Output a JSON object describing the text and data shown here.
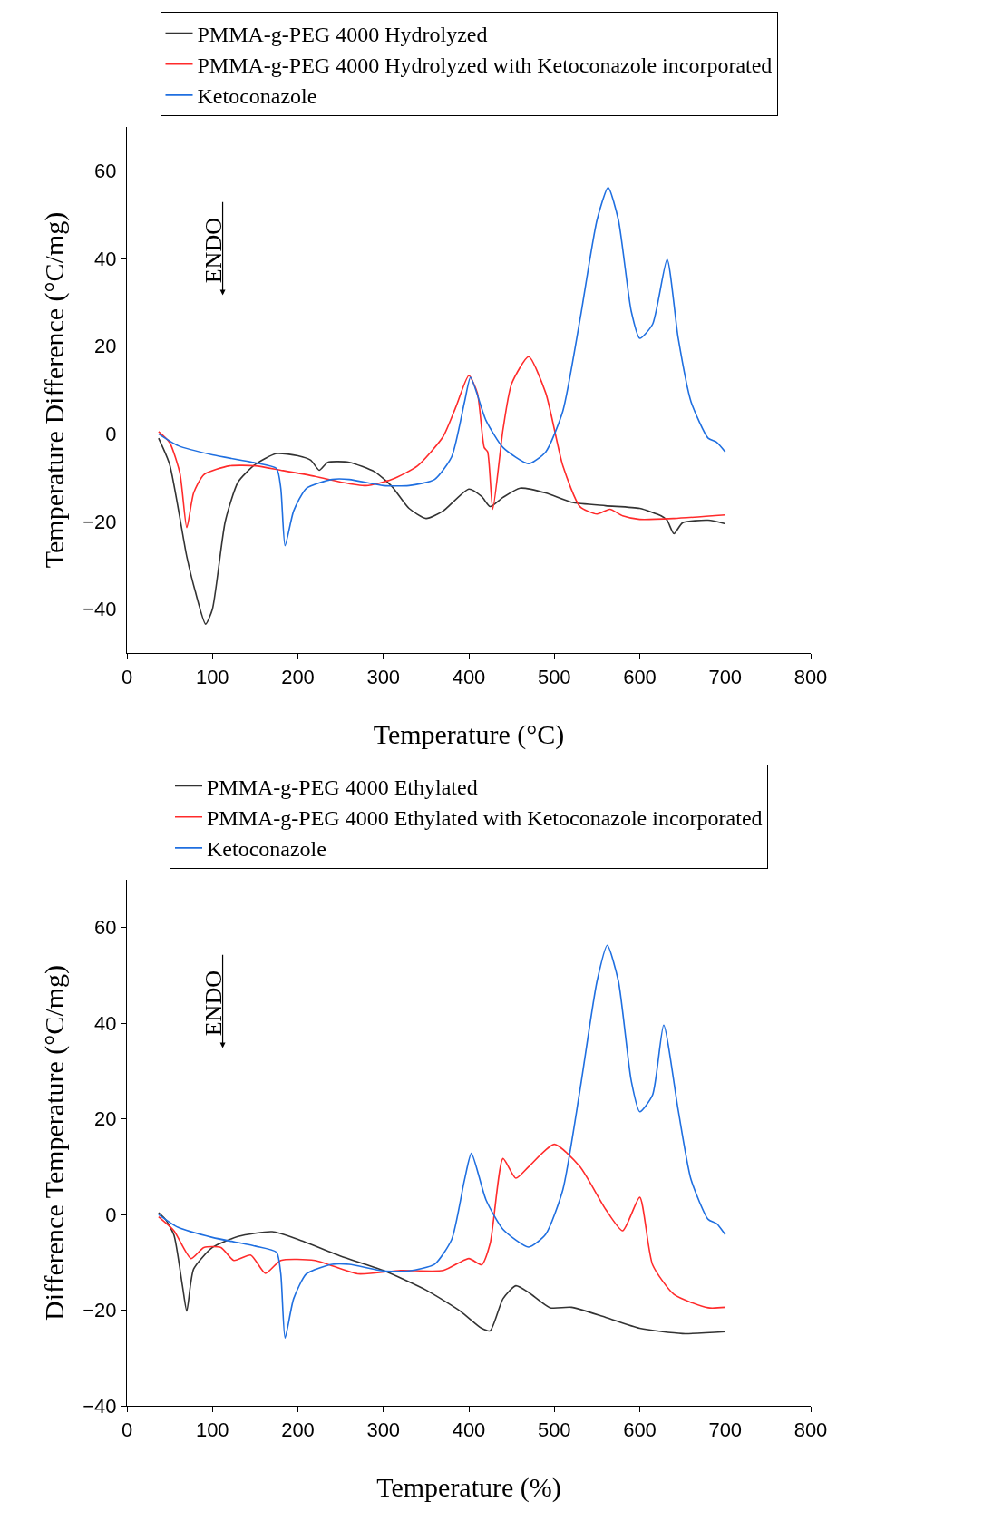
{
  "chart_data": [
    {
      "type": "line",
      "xlabel": "Temperature (°C)",
      "ylabel": "Temperature Difference (°C/mg)",
      "xlim": [
        0,
        800
      ],
      "ylim": [
        -50,
        70
      ],
      "xticks": [
        0,
        100,
        200,
        300,
        400,
        500,
        600,
        700,
        800
      ],
      "yticks": [
        -40,
        -20,
        0,
        20,
        40,
        60
      ],
      "grid": false,
      "legend": "top",
      "marker": "none",
      "line_style": "solid",
      "annotations": [
        "ENDO"
      ],
      "series": [
        {
          "name": "PMMA-g-PEG 4000 Hydrolyzed",
          "color": "#333333",
          "x": [
            37,
            50,
            70,
            80,
            92,
            100,
            115,
            130,
            150,
            175,
            200,
            215,
            225,
            235,
            260,
            290,
            310,
            330,
            350,
            370,
            400,
            415,
            425,
            440,
            460,
            490,
            520,
            560,
            600,
            625,
            632,
            640,
            650,
            680,
            700
          ],
          "values": [
            -1,
            -7,
            -28,
            -36,
            -43.4,
            -40,
            -20,
            -11,
            -7,
            -4.5,
            -5,
            -6,
            -8.3,
            -6.5,
            -6.5,
            -8.7,
            -12,
            -17,
            -19.3,
            -17.6,
            -12.6,
            -14.3,
            -16.6,
            -14.5,
            -12.4,
            -13.5,
            -15.6,
            -16.4,
            -17,
            -18.7,
            -19.7,
            -22.8,
            -20.3,
            -19.7,
            -20.5
          ]
        },
        {
          "name": "PMMA-g-PEG 4000 Hydrolyzed with Ketoconazole incorporated",
          "color": "#ff2b2b",
          "x": [
            37,
            50,
            62,
            70,
            78,
            90,
            120,
            150,
            180,
            220,
            250,
            280,
            310,
            340,
            370,
            385,
            400,
            410,
            418,
            422,
            428,
            440,
            450,
            470,
            490,
            510,
            530,
            550,
            565,
            580,
            600,
            640,
            700
          ],
          "values": [
            0.5,
            -2,
            -9,
            -21.4,
            -13.5,
            -9.3,
            -7.3,
            -7.3,
            -8.3,
            -9.7,
            -11,
            -11.8,
            -10.4,
            -7.3,
            -0.6,
            6.2,
            13.3,
            9.3,
            -3.1,
            -4.1,
            -17.2,
            1,
            11.4,
            17.6,
            9.3,
            -7.3,
            -16.6,
            -18.3,
            -17.2,
            -18.7,
            -19.5,
            -19.3,
            -18.5
          ]
        },
        {
          "name": "Ketoconazole",
          "color": "#1f6fe0",
          "x": [
            37,
            60,
            100,
            150,
            175,
            180,
            185,
            195,
            210,
            240,
            260,
            300,
            330,
            360,
            380,
            395,
            402,
            420,
            440,
            470,
            490,
            510,
            530,
            550,
            563,
            575,
            590,
            600,
            615,
            632,
            645,
            660,
            680,
            690,
            700
          ],
          "values": [
            0,
            -2.7,
            -4.8,
            -6.6,
            -7.9,
            -12.4,
            -25.5,
            -17.6,
            -12.4,
            -10.4,
            -10.4,
            -11.8,
            -11.8,
            -10.4,
            -5.2,
            7.3,
            12.9,
            3.1,
            -3.1,
            -6.8,
            -4.1,
            5.2,
            26,
            48.8,
            56.2,
            48.8,
            28,
            21.8,
            25,
            39.8,
            21.8,
            7.3,
            -1,
            -1.9,
            -4.1
          ]
        }
      ]
    },
    {
      "type": "line",
      "xlabel": "Temperature (%)",
      "ylabel": "Difference Temperature (°C/mg)",
      "xlim": [
        0,
        800
      ],
      "ylim": [
        -40,
        70
      ],
      "xticks": [
        0,
        100,
        200,
        300,
        400,
        500,
        600,
        700,
        800
      ],
      "yticks": [
        -40,
        -20,
        0,
        20,
        40,
        60
      ],
      "grid": false,
      "legend": "top",
      "marker": "none",
      "line_style": "solid",
      "annotations": [
        "ENDO"
      ],
      "series": [
        {
          "name": "PMMA-g-PEG 4000 Ethylated",
          "color": "#333333",
          "x": [
            37,
            45,
            55,
            65,
            70,
            78,
            100,
            130,
            170,
            200,
            250,
            300,
            350,
            390,
            415,
            425,
            440,
            455,
            470,
            495,
            520,
            560,
            600,
            650,
            700
          ],
          "values": [
            0.4,
            -1,
            -4.3,
            -15,
            -20.2,
            -11.4,
            -6.9,
            -4.6,
            -3.6,
            -5.2,
            -8.7,
            -11.7,
            -15.8,
            -20.2,
            -23.8,
            -24.3,
            -17.6,
            -14.9,
            -16.3,
            -19.5,
            -19.4,
            -21.5,
            -23.8,
            -24.9,
            -24.5
          ]
        },
        {
          "name": "PMMA-g-PEG 4000 Ethylated with Ketoconazole incorporated",
          "color": "#ff2b2b",
          "x": [
            37,
            55,
            75,
            90,
            110,
            125,
            145,
            162,
            180,
            220,
            270,
            320,
            370,
            400,
            415,
            425,
            440,
            455,
            470,
            500,
            530,
            560,
            580,
            600,
            615,
            640,
            680,
            700
          ],
          "values": [
            -0.5,
            -3.4,
            -9.2,
            -6.9,
            -6.9,
            -9.6,
            -8.5,
            -12.3,
            -9.6,
            -9.6,
            -12.4,
            -11.7,
            -11.7,
            -9.2,
            -10.5,
            -6,
            11.7,
            7.6,
            10,
            14.7,
            10,
            1.1,
            -3.4,
            3.6,
            -10.5,
            -16.7,
            -19.5,
            -19.4
          ]
        },
        {
          "name": "Ketoconazole",
          "color": "#1f6fe0",
          "x": [
            37,
            60,
            100,
            150,
            175,
            180,
            185,
            195,
            210,
            240,
            260,
            300,
            330,
            360,
            380,
            395,
            403,
            420,
            440,
            470,
            490,
            510,
            530,
            550,
            562,
            575,
            590,
            600,
            615,
            628,
            645,
            660,
            680,
            690,
            700
          ],
          "values": [
            0,
            -2.7,
            -4.8,
            -6.6,
            -7.9,
            -12.4,
            -25.8,
            -17.6,
            -12.4,
            -10.4,
            -10.4,
            -11.8,
            -11.8,
            -10.4,
            -5.2,
            7.3,
            12.8,
            3.1,
            -3.1,
            -6.8,
            -4.1,
            5.2,
            26,
            48.8,
            56.3,
            48.8,
            28,
            21.5,
            25,
            39.6,
            21.8,
            7.3,
            -1,
            -1.9,
            -4.2
          ]
        }
      ]
    }
  ]
}
